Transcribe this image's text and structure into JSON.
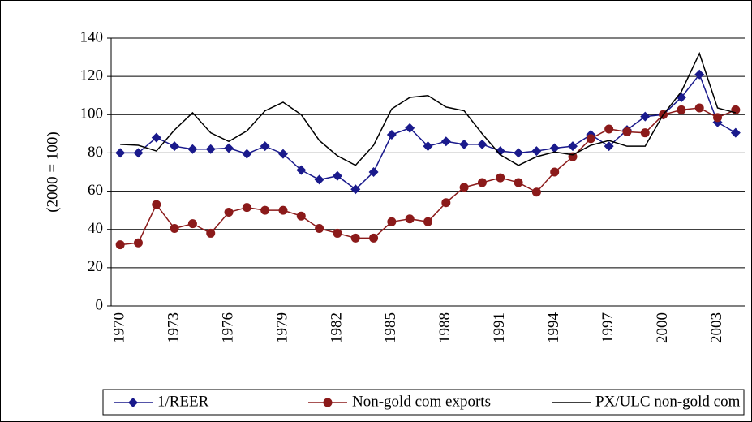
{
  "chart_data": {
    "type": "line",
    "ylabel": "(2000 = 100)",
    "categories": [
      "1970",
      null,
      null,
      "1973",
      null,
      null,
      "1976",
      null,
      null,
      "1979",
      null,
      null,
      "1982",
      null,
      null,
      "1985",
      null,
      null,
      "1988",
      null,
      null,
      "1991",
      null,
      null,
      "1994",
      null,
      null,
      "1997",
      null,
      null,
      "2000",
      null,
      null,
      "2003",
      null
    ],
    "series": [
      {
        "name": "1/REER",
        "color": "#1a1a8c",
        "marker": "diamond",
        "values": [
          80,
          80,
          88,
          83.5,
          82,
          82,
          82.5,
          79.5,
          83.5,
          79.5,
          71,
          66,
          68,
          61,
          70,
          89.5,
          93,
          83.5,
          86,
          84.5,
          84.5,
          81,
          80,
          81,
          82.5,
          83.5,
          89.5,
          83.5,
          92,
          99,
          100,
          109,
          121,
          96,
          90.5
        ]
      },
      {
        "name": "Non-gold com exports",
        "color": "#8b1a1a",
        "marker": "circle",
        "values": [
          32,
          33,
          53,
          40.5,
          43,
          38,
          49,
          51.5,
          50,
          50,
          47,
          40.5,
          38,
          35.5,
          35.5,
          44,
          45.5,
          44,
          54,
          62,
          64.5,
          67,
          64.5,
          59.5,
          70,
          78,
          87.5,
          92.5,
          91,
          90.5,
          100,
          102.5,
          103.5,
          98.5,
          102.5
        ]
      },
      {
        "name": "PX/ULC non-gold com",
        "color": "#000000",
        "marker": "none",
        "values": [
          84.5,
          84,
          81,
          92,
          101,
          90.5,
          86,
          91.5,
          102,
          106.5,
          100,
          86.5,
          78.5,
          73.5,
          84,
          103,
          109,
          110,
          104,
          102,
          90,
          79,
          73.5,
          78,
          80.5,
          79,
          84,
          86.5,
          83.5,
          83.5,
          100,
          112,
          132,
          103.5,
          101
        ]
      }
    ],
    "ylim": [
      0,
      140
    ],
    "yticks": [
      0,
      20,
      40,
      60,
      80,
      100,
      120,
      140
    ],
    "grid": true
  }
}
